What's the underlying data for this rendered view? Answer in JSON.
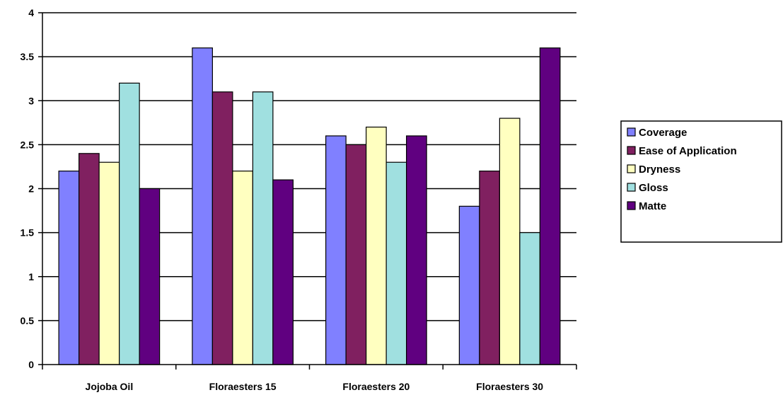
{
  "chart_data": {
    "type": "bar",
    "title": "",
    "xlabel": "",
    "ylabel": "",
    "categories": [
      "Jojoba Oil",
      "Floraesters 15",
      "Floraesters 20",
      "Floraesters 30"
    ],
    "ylim": [
      0,
      4
    ],
    "yticks": [
      0,
      0.5,
      1,
      1.5,
      2,
      2.5,
      3,
      3.5,
      4
    ],
    "ytick_labels": [
      "0",
      "0.5",
      "1",
      "1.5",
      "2",
      "2.5",
      "3",
      "3.5",
      "4"
    ],
    "grid": "horizontal",
    "legend": "right",
    "series": [
      {
        "name": "Coverage",
        "color": "#8080ff",
        "values": [
          2.2,
          3.6,
          2.6,
          1.8
        ]
      },
      {
        "name": "Ease of Application",
        "color": "#802060",
        "values": [
          2.4,
          3.1,
          2.5,
          2.2
        ]
      },
      {
        "name": "Dryness",
        "color": "#ffffc0",
        "values": [
          2.3,
          2.2,
          2.7,
          2.8
        ]
      },
      {
        "name": "Gloss",
        "color": "#a0e0e0",
        "values": [
          3.2,
          3.1,
          2.3,
          1.5
        ]
      },
      {
        "name": "Matte",
        "color": "#600080",
        "values": [
          2.0,
          2.1,
          2.6,
          3.6
        ]
      }
    ]
  }
}
